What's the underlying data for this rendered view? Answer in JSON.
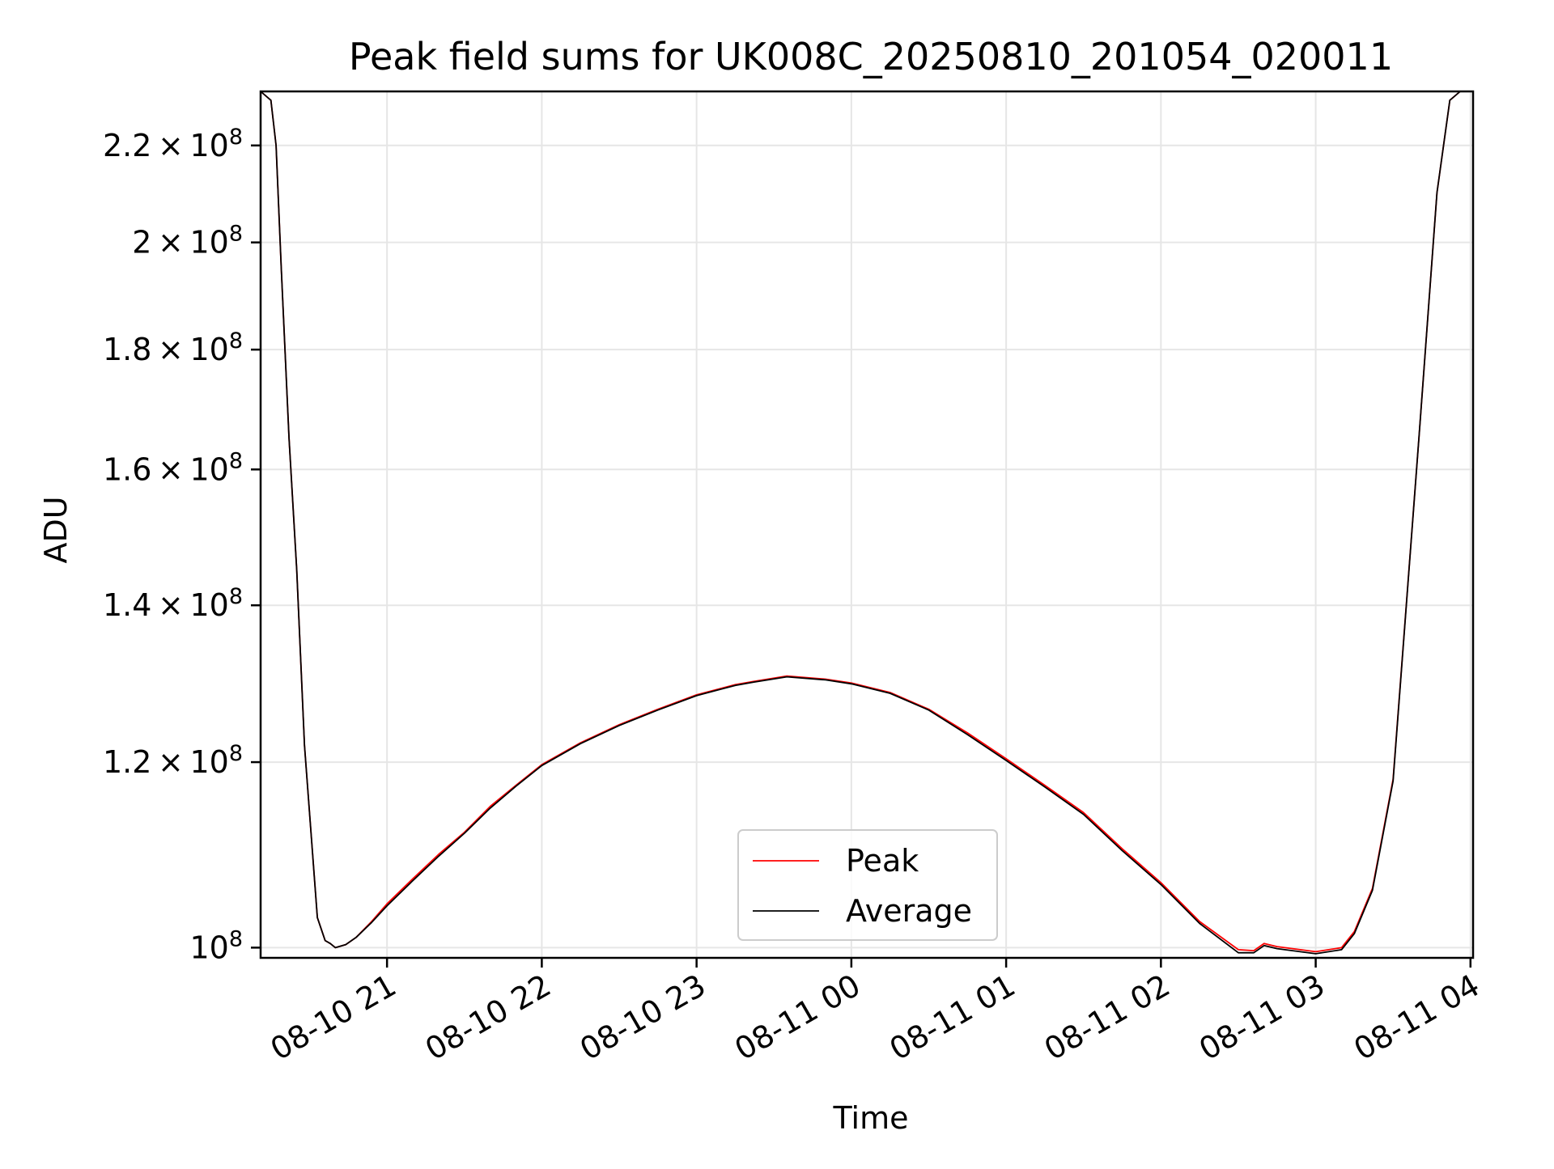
{
  "chart_data": {
    "type": "line",
    "title": "Peak field sums for UK008C_20250810_201054_020011",
    "xlabel": "Time",
    "ylabel": "ADU",
    "x_axis": {
      "scale": "time",
      "range": [
        "2025-08-10 20:11",
        "2025-08-11 04:01"
      ],
      "ticks": [
        "2025-08-10 21:00",
        "2025-08-10 22:00",
        "2025-08-10 23:00",
        "2025-08-11 00:00",
        "2025-08-11 01:00",
        "2025-08-11 02:00",
        "2025-08-11 03:00",
        "2025-08-11 04:00"
      ],
      "tick_labels": [
        "08-10 21",
        "08-10 22",
        "08-10 23",
        "08-11 00",
        "08-11 01",
        "08-11 02",
        "08-11 03",
        "08-11 04"
      ]
    },
    "y_axis": {
      "scale": "log",
      "range": [
        99000000,
        232000000
      ],
      "ticks": [
        100000000,
        120000000,
        140000000,
        160000000,
        180000000,
        200000000,
        220000000
      ],
      "tick_labels": [
        {
          "mantissa": "",
          "exponent": "8"
        },
        {
          "mantissa": "1.2",
          "exponent": "8"
        },
        {
          "mantissa": "1.4",
          "exponent": "8"
        },
        {
          "mantissa": "1.6",
          "exponent": "8"
        },
        {
          "mantissa": "1.8",
          "exponent": "8"
        },
        {
          "mantissa": "2",
          "exponent": "8"
        },
        {
          "mantissa": "2.2",
          "exponent": "8"
        }
      ]
    },
    "grid": true,
    "legend": {
      "position": "lower center"
    },
    "series": [
      {
        "name": "Peak",
        "color": "#ff0000",
        "points": [
          [
            "2025-08-10 20:11",
            232000000
          ],
          [
            "2025-08-10 20:15",
            230000000
          ],
          [
            "2025-08-10 20:17",
            220000000
          ],
          [
            "2025-08-10 20:19",
            195000000
          ],
          [
            "2025-08-10 20:22",
            165000000
          ],
          [
            "2025-08-10 20:25",
            145000000
          ],
          [
            "2025-08-10 20:28",
            122000000
          ],
          [
            "2025-08-10 20:33",
            103000000
          ],
          [
            "2025-08-10 20:36",
            100700000
          ],
          [
            "2025-08-10 20:38",
            100400000
          ],
          [
            "2025-08-10 20:40",
            100000000
          ],
          [
            "2025-08-10 20:44",
            100300000
          ],
          [
            "2025-08-10 20:48",
            101000000
          ],
          [
            "2025-08-10 20:54",
            102600000
          ],
          [
            "2025-08-10 21:00",
            104400000
          ],
          [
            "2025-08-10 21:10",
            107000000
          ],
          [
            "2025-08-10 21:20",
            109600000
          ],
          [
            "2025-08-10 21:30",
            112000000
          ],
          [
            "2025-08-10 21:40",
            114900000
          ],
          [
            "2025-08-10 21:50",
            117300000
          ],
          [
            "2025-08-10 22:00",
            119700000
          ],
          [
            "2025-08-10 22:15",
            122300000
          ],
          [
            "2025-08-10 22:30",
            124500000
          ],
          [
            "2025-08-10 22:45",
            126400000
          ],
          [
            "2025-08-10 23:00",
            128200000
          ],
          [
            "2025-08-10 23:15",
            129500000
          ],
          [
            "2025-08-10 23:22",
            129900000
          ],
          [
            "2025-08-10 23:35",
            130600000
          ],
          [
            "2025-08-10 23:50",
            130200000
          ],
          [
            "2025-08-11 00:00",
            129700000
          ],
          [
            "2025-08-11 00:15",
            128500000
          ],
          [
            "2025-08-11 00:30",
            126400000
          ],
          [
            "2025-08-11 00:45",
            123500000
          ],
          [
            "2025-08-11 01:00",
            120400000
          ],
          [
            "2025-08-11 01:15",
            117300000
          ],
          [
            "2025-08-11 01:30",
            114200000
          ],
          [
            "2025-08-11 01:45",
            110200000
          ],
          [
            "2025-08-11 02:00",
            106600000
          ],
          [
            "2025-08-11 02:15",
            102600000
          ],
          [
            "2025-08-11 02:30",
            99800000
          ],
          [
            "2025-08-11 02:36",
            99700000
          ],
          [
            "2025-08-11 02:40",
            100400000
          ],
          [
            "2025-08-11 02:45",
            100100000
          ],
          [
            "2025-08-11 03:00",
            99600000
          ],
          [
            "2025-08-11 03:10",
            100000000
          ],
          [
            "2025-08-11 03:15",
            101600000
          ],
          [
            "2025-08-11 03:22",
            106000000
          ],
          [
            "2025-08-11 03:30",
            118000000
          ],
          [
            "2025-08-11 03:40",
            165000000
          ],
          [
            "2025-08-11 03:47",
            210000000
          ],
          [
            "2025-08-11 03:52",
            230000000
          ],
          [
            "2025-08-11 03:56",
            232000000
          ],
          [
            "2025-08-11 04:01",
            232000000
          ]
        ]
      },
      {
        "name": "Average",
        "color": "#000000",
        "points": [
          [
            "2025-08-10 20:11",
            232000000
          ],
          [
            "2025-08-10 20:15",
            230000000
          ],
          [
            "2025-08-10 20:17",
            220000000
          ],
          [
            "2025-08-10 20:19",
            195000000
          ],
          [
            "2025-08-10 20:22",
            165000000
          ],
          [
            "2025-08-10 20:25",
            145000000
          ],
          [
            "2025-08-10 20:28",
            122000000
          ],
          [
            "2025-08-10 20:33",
            103000000
          ],
          [
            "2025-08-10 20:36",
            100700000
          ],
          [
            "2025-08-10 20:38",
            100400000
          ],
          [
            "2025-08-10 20:40",
            100000000
          ],
          [
            "2025-08-10 20:44",
            100300000
          ],
          [
            "2025-08-10 20:48",
            101000000
          ],
          [
            "2025-08-10 20:54",
            102500000
          ],
          [
            "2025-08-10 21:00",
            104200000
          ],
          [
            "2025-08-10 21:10",
            106800000
          ],
          [
            "2025-08-10 21:20",
            109400000
          ],
          [
            "2025-08-10 21:30",
            111900000
          ],
          [
            "2025-08-10 21:40",
            114700000
          ],
          [
            "2025-08-10 21:50",
            117200000
          ],
          [
            "2025-08-10 22:00",
            119600000
          ],
          [
            "2025-08-10 22:15",
            122200000
          ],
          [
            "2025-08-10 22:30",
            124400000
          ],
          [
            "2025-08-10 22:45",
            126300000
          ],
          [
            "2025-08-10 23:00",
            128100000
          ],
          [
            "2025-08-10 23:15",
            129400000
          ],
          [
            "2025-08-10 23:22",
            129800000
          ],
          [
            "2025-08-10 23:35",
            130500000
          ],
          [
            "2025-08-10 23:50",
            130100000
          ],
          [
            "2025-08-11 00:00",
            129600000
          ],
          [
            "2025-08-11 00:15",
            128400000
          ],
          [
            "2025-08-11 00:30",
            126300000
          ],
          [
            "2025-08-11 00:45",
            123300000
          ],
          [
            "2025-08-11 01:00",
            120200000
          ],
          [
            "2025-08-11 01:15",
            117100000
          ],
          [
            "2025-08-11 01:30",
            114000000
          ],
          [
            "2025-08-11 01:45",
            110000000
          ],
          [
            "2025-08-11 02:00",
            106400000
          ],
          [
            "2025-08-11 02:15",
            102400000
          ],
          [
            "2025-08-11 02:30",
            99500000
          ],
          [
            "2025-08-11 02:36",
            99500000
          ],
          [
            "2025-08-11 02:40",
            100200000
          ],
          [
            "2025-08-11 02:45",
            99900000
          ],
          [
            "2025-08-11 03:00",
            99400000
          ],
          [
            "2025-08-11 03:10",
            99800000
          ],
          [
            "2025-08-11 03:15",
            101400000
          ],
          [
            "2025-08-11 03:22",
            105800000
          ],
          [
            "2025-08-11 03:30",
            117800000
          ],
          [
            "2025-08-11 03:40",
            165000000
          ],
          [
            "2025-08-11 03:47",
            210000000
          ],
          [
            "2025-08-11 03:52",
            230000000
          ],
          [
            "2025-08-11 03:56",
            232000000
          ],
          [
            "2025-08-11 04:01",
            232000000
          ]
        ]
      }
    ]
  }
}
